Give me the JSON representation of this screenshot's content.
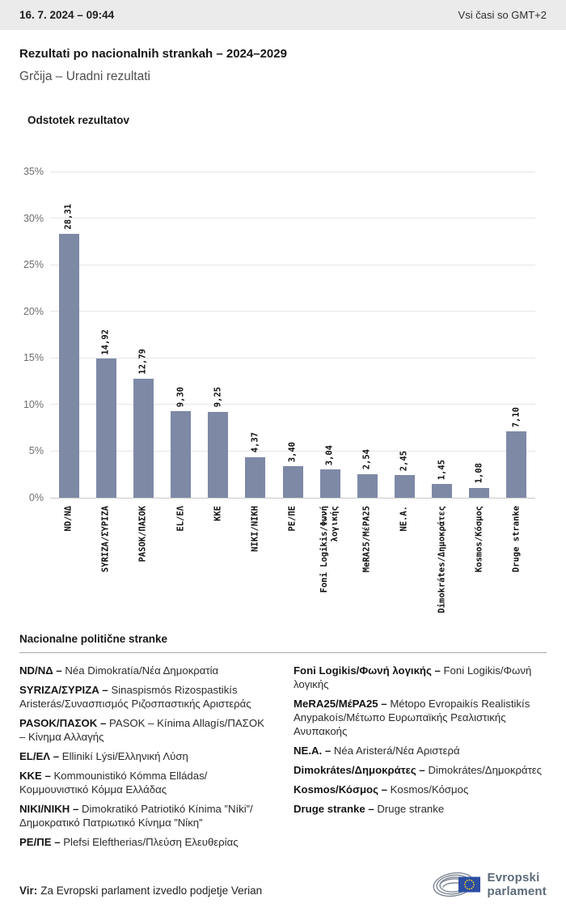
{
  "header": {
    "datetime": "16. 7. 2024 – 09:44",
    "timezone_note": "Vsi časi so GMT+2"
  },
  "page": {
    "title": "Rezultati po nacionalnih strankah – 2024–2029",
    "subtitle": "Grčija – Uradni rezultati"
  },
  "chart_data": {
    "type": "bar",
    "title": "Odstotek rezultatov",
    "categories": [
      "ND/ΝΔ",
      "SYRIZA/ΣΥΡΙΖΑ",
      "PASOK/ΠΑΣΟΚ",
      "EL/ΕΛ",
      "ΚΚΕ",
      "NIKI/ΝΙΚΗ",
      "PE/ΠΕ",
      "Foni Logikis/Φωνή\nλογικής",
      "MeRA25/ΜέΡΑ25",
      "NE.A.",
      "Dimokrátes/Δημοκράτες",
      "Kosmos/Κόσμος",
      "Druge stranke"
    ],
    "values": [
      28.31,
      14.92,
      12.79,
      9.3,
      9.25,
      4.37,
      3.4,
      3.04,
      2.54,
      2.45,
      1.45,
      1.08,
      7.1
    ],
    "value_labels": [
      "28,31",
      "14,92",
      "12,79",
      "9,30",
      "9,25",
      "4,37",
      "3,40",
      "3,04",
      "2,54",
      "2,45",
      "1,45",
      "1,08",
      "7,10"
    ],
    "xlabel": "",
    "ylabel": "Odstotek rezultatov",
    "ylim": [
      0,
      35
    ],
    "ytick_step": 5,
    "ytick_labels": [
      "35%",
      "30%",
      "25%",
      "20%",
      "15%",
      "10%",
      "5%",
      "0%"
    ],
    "grid": true,
    "legend": false,
    "bar_color": "#7e89a6"
  },
  "parties_section": {
    "heading": "Nacionalne politične stranke",
    "columns": [
      [
        {
          "abbr": "ND/ΝΔ –",
          "name": "Néa Dimokratía/Νέα Δημοκρατία"
        },
        {
          "abbr": "SYRIZA/ΣΥΡΙΖΑ –",
          "name": "Sinaspismós Rizospastikís Aristerás/Συνασπισμός Ριζοσπαστικής Αριστεράς"
        },
        {
          "abbr": "PASOK/ΠΑΣΟΚ –",
          "name": "PASOK – Kínima Allagís/ΠΑΣΟΚ – Κίνημα Αλλαγής"
        },
        {
          "abbr": "EL/ΕΛ –",
          "name": "Ellinikí Lýsi/Ελληνική Λύση"
        },
        {
          "abbr": "ΚΚΕ –",
          "name": "Kommounistikó Kómma Elládas/Κομμουνιστικό Κόμμα Ελλάδας"
        },
        {
          "abbr": "NIKI/ΝΙΚΗ –",
          "name": "Dimokratikó Patriotikó Kínima ”Níki”/Δημοκρατικό Πατριωτικό Κίνημα ”Νίκη”"
        },
        {
          "abbr": "PE/ΠΕ –",
          "name": "Plefsi Eleftherias/Πλεύση Ελευθερίας"
        }
      ],
      [
        {
          "abbr": "Foni Logikis/Φωνή λογικής –",
          "name": "Foni Logikis/Φωνή λογικής"
        },
        {
          "abbr": "MeRA25/ΜέΡΑ25 –",
          "name": "Métopo Evropaikís Realistikís Anypakoís/Μέτωπο Ευρωπαϊκής Ρεαλιστικής Ανυπακοής"
        },
        {
          "abbr": "NE.A. –",
          "name": "Néa Aristerá/Νέα Αριστερά"
        },
        {
          "abbr": "Dimokrátes/Δημοκράτες –",
          "name": "Dimokrátes/Δημοκράτες"
        },
        {
          "abbr": "Kosmos/Κόσμος –",
          "name": "Kosmos/Κόσμος"
        },
        {
          "abbr": "Druge stranke –",
          "name": "Druge stranke"
        }
      ]
    ]
  },
  "footer": {
    "source_label": "Vir:",
    "source_text": "Za Evropski parlament izvedlo podjetje Verian",
    "logo": {
      "line1": "Evropski",
      "line2": "parlament"
    }
  }
}
